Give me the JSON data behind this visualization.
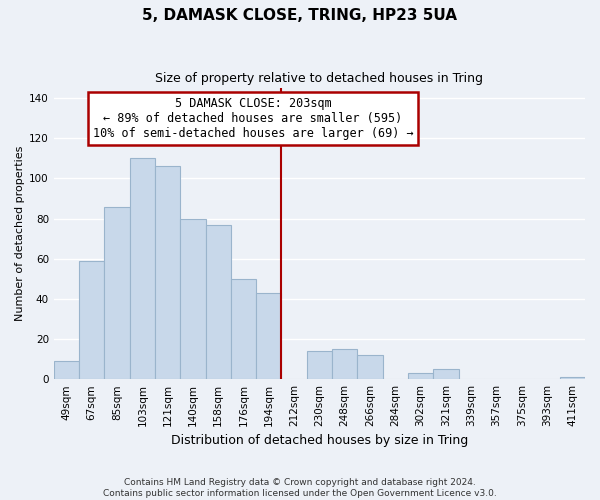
{
  "title_line1": "5, DAMASK CLOSE, TRING, HP23 5UA",
  "title_line2": "Size of property relative to detached houses in Tring",
  "xlabel": "Distribution of detached houses by size in Tring",
  "ylabel": "Number of detached properties",
  "footer_line1": "Contains HM Land Registry data © Crown copyright and database right 2024.",
  "footer_line2": "Contains public sector information licensed under the Open Government Licence v3.0.",
  "categories": [
    "49sqm",
    "67sqm",
    "85sqm",
    "103sqm",
    "121sqm",
    "140sqm",
    "158sqm",
    "176sqm",
    "194sqm",
    "212sqm",
    "230sqm",
    "248sqm",
    "266sqm",
    "284sqm",
    "302sqm",
    "321sqm",
    "339sqm",
    "357sqm",
    "375sqm",
    "393sqm",
    "411sqm"
  ],
  "values": [
    9,
    59,
    86,
    110,
    106,
    80,
    77,
    50,
    43,
    0,
    14,
    15,
    12,
    0,
    3,
    5,
    0,
    0,
    0,
    0,
    1
  ],
  "bar_color": "#c8d8ea",
  "bar_edge_color": "#9ab4cc",
  "vline_x": 8.5,
  "vline_color": "#aa0000",
  "annotation_title": "5 DAMASK CLOSE: 203sqm",
  "annotation_line1": "← 89% of detached houses are smaller (595)",
  "annotation_line2": "10% of semi-detached houses are larger (69) →",
  "ylim": [
    0,
    145
  ],
  "yticks": [
    0,
    20,
    40,
    60,
    80,
    100,
    120,
    140
  ],
  "background_color": "#edf1f7",
  "grid_color": "#ffffff",
  "title_fontsize": 11,
  "subtitle_fontsize": 9,
  "xlabel_fontsize": 9,
  "ylabel_fontsize": 8,
  "tick_fontsize": 7.5,
  "footer_fontsize": 6.5
}
